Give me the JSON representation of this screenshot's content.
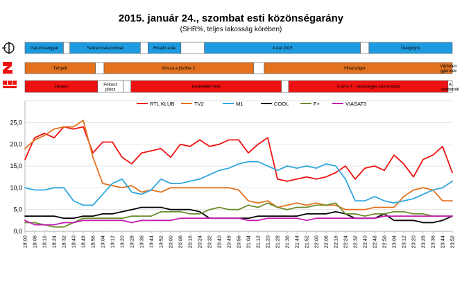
{
  "chart_data": {
    "type": "line",
    "title": "2015. január 24., szombat esti közönségarány",
    "subtitle": "(SHR%, teljes lakosság körében)",
    "ylim": [
      0,
      30
    ],
    "yticks": [
      "0,0",
      "5,0",
      "10,0",
      "15,0",
      "20,0",
      "25,0"
    ],
    "x": [
      "18:00",
      "18:08",
      "18:16",
      "18:24",
      "18:32",
      "18:40",
      "18:48",
      "18:56",
      "19:04",
      "19:12",
      "19:20",
      "19:28",
      "19:36",
      "19:44",
      "19:52",
      "20:00",
      "20:08",
      "20:16",
      "20:24",
      "20:32",
      "20:40",
      "20:48",
      "20:56",
      "21:04",
      "21:12",
      "21:20",
      "21:28",
      "21:36",
      "21:44",
      "21:52",
      "22:00",
      "22:08",
      "22:16",
      "22:24",
      "22:32",
      "22:40",
      "22:48",
      "22:56",
      "23:04",
      "23:12",
      "23:20",
      "23:28",
      "23:36",
      "23:44",
      "23:52"
    ],
    "legend_position": "top",
    "grid": true,
    "series": [
      {
        "name": "RTL KLUB",
        "color": "#ee1111",
        "values": [
          16.5,
          21.5,
          22.5,
          21.5,
          24,
          23.5,
          24,
          18,
          20.5,
          20.5,
          17,
          15.5,
          18,
          18.5,
          19,
          17,
          20,
          19.5,
          21,
          19.5,
          20,
          21,
          21,
          18,
          20,
          21.5,
          12,
          11.5,
          12,
          12.5,
          12,
          12.5,
          13.5,
          15,
          12,
          14.5,
          15,
          14,
          17.5,
          15.5,
          12.5,
          16.5,
          17.5,
          19.5,
          13.5
        ]
      },
      {
        "name": "TV2",
        "color": "#e3711d",
        "values": [
          19,
          21,
          22,
          23.5,
          24,
          24,
          25.5,
          17,
          11,
          10.5,
          10,
          10.5,
          9,
          9.5,
          9,
          10,
          10,
          10,
          10,
          10,
          10,
          10,
          9.5,
          7,
          6.5,
          7,
          5.5,
          6,
          6.5,
          6,
          6.5,
          6,
          6,
          5,
          5,
          5,
          5.5,
          5.5,
          5.5,
          8,
          9.5,
          10,
          9.5,
          7,
          7
        ]
      },
      {
        "name": "M1",
        "color": "#2fa7dd",
        "values": [
          10,
          9.5,
          9.5,
          10,
          10,
          7,
          6,
          6,
          8.5,
          11,
          12,
          9,
          8.5,
          9.5,
          12,
          11,
          11,
          11.5,
          12,
          13,
          14,
          14.5,
          15.5,
          16,
          16,
          15,
          14,
          15,
          14.5,
          15,
          14.5,
          15.5,
          15,
          12,
          7,
          7,
          8,
          7,
          6.5,
          7,
          7.5,
          8.5,
          9.5,
          10,
          11.5
        ]
      },
      {
        "name": "COOL",
        "color": "#000000",
        "values": [
          3.5,
          3.5,
          3.5,
          3.5,
          3,
          3,
          3.5,
          3.5,
          4,
          4,
          4.5,
          5,
          5.5,
          5.5,
          5.5,
          5,
          5,
          5,
          4.5,
          3,
          3,
          3,
          3,
          3,
          3.5,
          3.5,
          3.5,
          3.5,
          3.5,
          4,
          4,
          4,
          4.5,
          4,
          3,
          3,
          3,
          4,
          2.5,
          2.5,
          2.5,
          2,
          2,
          2.5,
          3.5
        ]
      },
      {
        "name": "F+",
        "color": "#6b8c2a",
        "values": [
          2,
          2,
          1.5,
          1,
          1,
          2,
          3,
          3,
          3,
          3,
          3,
          3.5,
          3.5,
          3.5,
          4.5,
          4.5,
          4.5,
          4,
          4,
          5,
          5.5,
          5,
          5,
          6,
          5.5,
          6.5,
          5.5,
          5,
          5.5,
          5.5,
          6,
          6,
          6.5,
          4,
          4,
          3.5,
          4,
          4,
          4.5,
          4.5,
          4,
          4,
          3.5,
          3.5,
          3.5
        ]
      },
      {
        "name": "VIASAT3",
        "color": "#c21bb3",
        "values": [
          2.5,
          1.5,
          1.5,
          1.5,
          2,
          2,
          2.5,
          2.5,
          2.5,
          2.5,
          2.5,
          2,
          2.5,
          2.5,
          2.5,
          2.5,
          3,
          3,
          3,
          3,
          3,
          3,
          3,
          2.5,
          2.5,
          3,
          3,
          3,
          3,
          2.5,
          3,
          3,
          3,
          3,
          3,
          3,
          3,
          3.5,
          3.5,
          3.5,
          3.5,
          3.5,
          3.5,
          3.5,
          3.5
        ]
      }
    ]
  },
  "schedule": [
    {
      "channel": "M1",
      "logo": "M1",
      "color": "#1e9be0",
      "blocks": [
        {
          "label": "Gasztroangyal",
          "start": 0.0,
          "end": 0.09
        },
        {
          "label": "",
          "start": 0.09,
          "end": 0.105,
          "gap": true
        },
        {
          "label": "Szerencseszombat",
          "start": 0.105,
          "end": 0.27
        },
        {
          "label": "",
          "start": 0.27,
          "end": 0.288,
          "gap": true
        },
        {
          "label": "Híradó este",
          "start": 0.288,
          "end": 0.365
        },
        {
          "label": "",
          "start": 0.365,
          "end": 0.42,
          "gap": true
        },
        {
          "label": "A dal 2015",
          "start": 0.42,
          "end": 0.785
        },
        {
          "label": "",
          "start": 0.785,
          "end": 0.805,
          "gap": true
        },
        {
          "label": "Üvegtigris",
          "start": 0.805,
          "end": 1.0
        }
      ]
    },
    {
      "channel": "TV2",
      "logo": "2",
      "color": "#e3711d",
      "blocks": [
        {
          "label": "Tények",
          "start": 0.0,
          "end": 0.165
        },
        {
          "label": "",
          "start": 0.165,
          "end": 0.185,
          "gap": true
        },
        {
          "label": "Vissza a jövőbe 2.",
          "start": 0.185,
          "end": 0.535
        },
        {
          "label": "",
          "start": 0.535,
          "end": 0.56,
          "gap": true
        },
        {
          "label": "Viharsziget",
          "start": 0.56,
          "end": 0.982
        },
        {
          "label": "Védtelen gyermek",
          "start": 0.982,
          "end": 1.0
        }
      ]
    },
    {
      "channel": "RTL KLUB",
      "logo": "RTL",
      "color": "#ee1111",
      "blocks": [
        {
          "label": "Híradó",
          "start": 0.0,
          "end": 0.17
        },
        {
          "label": "Fókusz plusz",
          "start": 0.17,
          "end": 0.23,
          "gap": true
        },
        {
          "label": "",
          "start": 0.23,
          "end": 0.248,
          "gap": true
        },
        {
          "label": "Ismeretlen férfi",
          "start": 0.248,
          "end": 0.6
        },
        {
          "label": "",
          "start": 0.6,
          "end": 0.617,
          "gap": true
        },
        {
          "label": "S.W.A.T. - különleges kommandó",
          "start": 0.617,
          "end": 0.99
        },
        {
          "label": "A szabonok",
          "start": 0.99,
          "end": 1.0,
          "gap": true
        }
      ]
    }
  ]
}
